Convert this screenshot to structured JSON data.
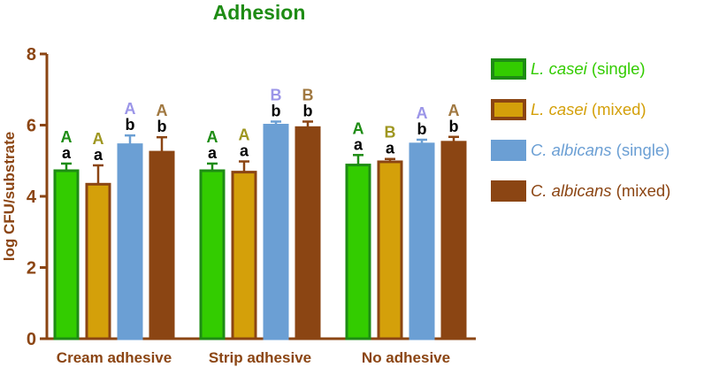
{
  "chart_data": {
    "type": "bar",
    "title": "Adhesion",
    "ylabel": "log CFU/substrate",
    "xlabel": "",
    "ylim": [
      0,
      8
    ],
    "yticks": [
      "0",
      "2",
      "4",
      "6",
      "8"
    ],
    "categories": [
      "Cream adhesive",
      "Strip adhesive",
      "No adhesive"
    ],
    "series": [
      {
        "species": "L. casei",
        "condition": "(single)",
        "fill": "#33cc00",
        "stroke": "#1e8c14",
        "uppercase_color": "#1e8c14",
        "values": [
          4.72,
          4.72,
          4.88
        ],
        "errors": [
          0.2,
          0.2,
          0.28
        ],
        "uppercase": [
          "A",
          "A",
          "A"
        ],
        "lowercase": [
          "a",
          "a",
          "a"
        ]
      },
      {
        "species": "L. casei",
        "condition": "(mixed)",
        "fill": "#d4a00a",
        "stroke": "#8b4513",
        "uppercase_color": "#9e9620",
        "values": [
          4.34,
          4.68,
          4.97
        ],
        "errors": [
          0.53,
          0.3,
          0.08
        ],
        "uppercase": [
          "A",
          "A",
          "B"
        ],
        "lowercase": [
          "a",
          "a",
          "a"
        ]
      },
      {
        "species": "C. albicans",
        "condition": "(single)",
        "fill": "#6b9fd4",
        "stroke": "#6b9fd4",
        "uppercase_color": "#9b95e8",
        "values": [
          5.45,
          6.0,
          5.47
        ],
        "errors": [
          0.26,
          0.1,
          0.12
        ],
        "uppercase": [
          "A",
          "B",
          "A"
        ],
        "lowercase": [
          "b",
          "b",
          "b"
        ]
      },
      {
        "species": "C. albicans",
        "condition": "(mixed)",
        "fill": "#8b4513",
        "stroke": "#8b4513",
        "uppercase_color": "#a07840",
        "values": [
          5.24,
          5.93,
          5.52
        ],
        "errors": [
          0.42,
          0.17,
          0.15
        ],
        "uppercase": [
          "A",
          "B",
          "A"
        ],
        "lowercase": [
          "b",
          "b",
          "b"
        ]
      }
    ],
    "colors": {
      "axis": "#8b4513",
      "title": "#1e8c14",
      "lowercase_letter": "#000000"
    }
  }
}
